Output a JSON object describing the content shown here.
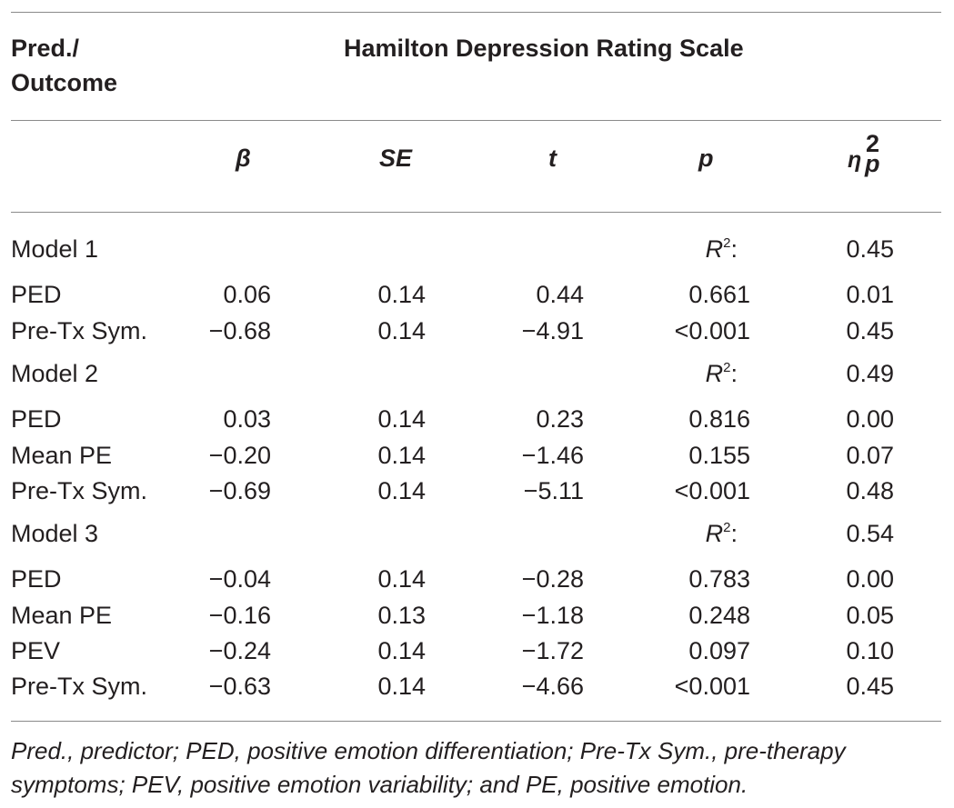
{
  "header": {
    "corner_label_line1": "Pred./",
    "corner_label_line2": "Outcome",
    "scale_title": "Hamilton Depression Rating Scale"
  },
  "columns": {
    "beta": "β",
    "se": "SE",
    "t": "t",
    "p": "p",
    "eta_base": "η",
    "eta_sub": "p",
    "eta_sup": "2"
  },
  "models": [
    {
      "label": "Model 1",
      "r2_label": "R",
      "r2_sup": "2",
      "r2_colon": ":",
      "r2_value": "0.45",
      "rows": [
        {
          "pred": "PED",
          "beta": "0.06",
          "se": "0.14",
          "t": "0.44",
          "p": "0.661",
          "eta": "0.01"
        },
        {
          "pred": "Pre-Tx Sym.",
          "beta": "−0.68",
          "se": "0.14",
          "t": "−4.91",
          "p": "<0.001",
          "eta": "0.45"
        }
      ]
    },
    {
      "label": "Model 2",
      "r2_label": "R",
      "r2_sup": "2",
      "r2_colon": ":",
      "r2_value": "0.49",
      "rows": [
        {
          "pred": "PED",
          "beta": "0.03",
          "se": "0.14",
          "t": "0.23",
          "p": "0.816",
          "eta": "0.00"
        },
        {
          "pred": "Mean PE",
          "beta": "−0.20",
          "se": "0.14",
          "t": "−1.46",
          "p": "0.155",
          "eta": "0.07"
        },
        {
          "pred": "Pre-Tx Sym.",
          "beta": "−0.69",
          "se": "0.14",
          "t": "−5.11",
          "p": "<0.001",
          "eta": "0.48"
        }
      ]
    },
    {
      "label": "Model 3",
      "r2_label": "R",
      "r2_sup": "2",
      "r2_colon": ":",
      "r2_value": "0.54",
      "rows": [
        {
          "pred": "PED",
          "beta": "−0.04",
          "se": "0.14",
          "t": "−0.28",
          "p": "0.783",
          "eta": "0.00"
        },
        {
          "pred": "Mean PE",
          "beta": "−0.16",
          "se": "0.13",
          "t": "−1.18",
          "p": "0.248",
          "eta": "0.05"
        },
        {
          "pred": "PEV",
          "beta": "−0.24",
          "se": "0.14",
          "t": "−1.72",
          "p": "0.097",
          "eta": "0.10"
        },
        {
          "pred": "Pre-Tx Sym.",
          "beta": "−0.63",
          "se": "0.14",
          "t": "−4.66",
          "p": "<0.001",
          "eta": "0.45"
        }
      ]
    }
  ],
  "footnote": "Pred., predictor; PED, positive emotion differentiation; Pre-Tx Sym., pre-therapy symptoms; PEV, positive emotion variability; and PE, positive emotion."
}
